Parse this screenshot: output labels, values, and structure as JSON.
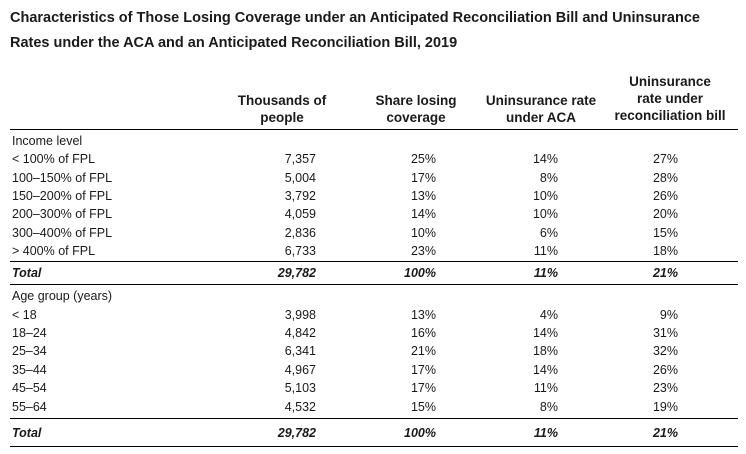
{
  "title": "Characteristics of Those Losing Coverage under an Anticipated Reconciliation Bill and Uninsurance Rates under the ACA and an Anticipated Reconciliation Bill, 2019",
  "columns": [
    {
      "lines": [
        "Thousands of",
        "people"
      ]
    },
    {
      "lines": [
        "Share losing",
        "coverage"
      ]
    },
    {
      "lines": [
        "Uninsurance rate",
        "under ACA"
      ]
    },
    {
      "lines": [
        "Uninsurance",
        "rate under",
        "reconciliation bill"
      ]
    }
  ],
  "income": {
    "heading": "Income level",
    "rows": [
      {
        "label": "< 100% of FPL",
        "values": [
          "7,357",
          "25%",
          "14%",
          "27%"
        ]
      },
      {
        "label": "100–150% of FPL",
        "values": [
          "5,004",
          "17%",
          "8%",
          "28%"
        ]
      },
      {
        "label": "150–200% of FPL",
        "values": [
          "3,792",
          "13%",
          "10%",
          "26%"
        ]
      },
      {
        "label": "200–300% of FPL",
        "values": [
          "4,059",
          "14%",
          "10%",
          "20%"
        ]
      },
      {
        "label": "300–400% of FPL",
        "values": [
          "2,836",
          "10%",
          "6%",
          "15%"
        ]
      },
      {
        "label": "> 400% of FPL",
        "values": [
          "6,733",
          "23%",
          "11%",
          "18%"
        ]
      }
    ],
    "total": {
      "label": "Total",
      "values": [
        "29,782",
        "100%",
        "11%",
        "21%"
      ]
    }
  },
  "age": {
    "heading": "Age group (years)",
    "rows": [
      {
        "label": "< 18",
        "values": [
          "3,998",
          "13%",
          "4%",
          "9%"
        ]
      },
      {
        "label": "18–24",
        "values": [
          "4,842",
          "16%",
          "14%",
          "31%"
        ]
      },
      {
        "label": "25–34",
        "values": [
          "6,341",
          "21%",
          "18%",
          "32%"
        ]
      },
      {
        "label": "35–44",
        "values": [
          "4,967",
          "17%",
          "14%",
          "26%"
        ]
      },
      {
        "label": "45–54",
        "values": [
          "5,103",
          "17%",
          "11%",
          "23%"
        ]
      },
      {
        "label": "55–64",
        "values": [
          "4,532",
          "15%",
          "8%",
          "19%"
        ]
      }
    ],
    "total": {
      "label": "Total",
      "values": [
        "29,782",
        "100%",
        "11%",
        "21%"
      ]
    }
  }
}
